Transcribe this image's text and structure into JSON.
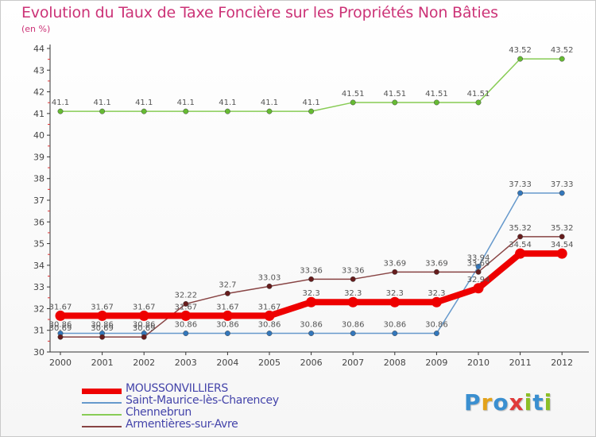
{
  "title": "Evolution du Taux de Taxe Foncière sur les Propriétés Non Bâties",
  "subtitle": "(en %)",
  "logo": {
    "text": "Proxiti",
    "colors": [
      "#3a8fd0",
      "#e3a21a",
      "#3a8fd0",
      "#e03a3a",
      "#8cbf26",
      "#3a8fd0",
      "#8cbf26"
    ]
  },
  "chart_data": {
    "type": "line",
    "title": "Evolution du Taux de Taxe Foncière sur les Propriétés Non Bâties",
    "ylabel": "(en %)",
    "xlabel": "",
    "ylim": [
      30,
      44
    ],
    "yticks": [
      30,
      31,
      32,
      33,
      34,
      35,
      36,
      37,
      38,
      39,
      40,
      41,
      42,
      43,
      44
    ],
    "categories": [
      "2000",
      "2001",
      "2002",
      "2003",
      "2004",
      "2005",
      "2006",
      "2007",
      "2008",
      "2009",
      "2010",
      "2011",
      "2012"
    ],
    "series": [
      {
        "name": "Chennebrun",
        "color": "#88cc55",
        "marker": "#66bb33",
        "width": 1.5,
        "values": [
          41.1,
          41.1,
          41.1,
          41.1,
          41.1,
          41.1,
          41.1,
          41.51,
          41.51,
          41.51,
          41.51,
          43.52,
          43.52
        ],
        "labels": [
          "41.1",
          "41.1",
          "41.1",
          "41.1",
          "41.1",
          "41.1",
          "41.1",
          "41.51",
          "41.51",
          "41.51",
          "41.51",
          "43.52",
          "43.52"
        ]
      },
      {
        "name": "Saint-Maurice-lès-Charencey",
        "color": "#6699cc",
        "marker": "#3377bb",
        "width": 1.5,
        "values": [
          30.86,
          30.86,
          30.86,
          30.86,
          30.86,
          30.86,
          30.86,
          30.86,
          30.86,
          30.86,
          33.94,
          37.33,
          37.33
        ],
        "labels": [
          "30.86",
          "30.86",
          "30.86",
          "30.86",
          "30.86",
          "30.86",
          "30.86",
          "30.86",
          "30.86",
          "30.86",
          "33.94",
          "37.33",
          "37.33"
        ]
      },
      {
        "name": "Armentières-sur-Avre",
        "color": "#884444",
        "marker": "#661c1c",
        "width": 1.5,
        "values": [
          30.69,
          30.69,
          30.69,
          32.22,
          32.7,
          33.03,
          33.36,
          33.36,
          33.69,
          33.69,
          33.69,
          35.32,
          35.32
        ],
        "labels": [
          "30.69",
          "30.69",
          "30.69",
          "32.22",
          "32.7",
          "33.03",
          "33.36",
          "33.36",
          "33.69",
          "33.69",
          "33.69",
          "35.32",
          "35.32"
        ]
      },
      {
        "name": "MOUSSONVILLIERS",
        "color": "#ee0000",
        "marker": "#ee0000",
        "width": 8,
        "values": [
          31.67,
          31.67,
          31.67,
          31.67,
          31.67,
          31.67,
          32.3,
          32.3,
          32.3,
          32.3,
          32.94,
          34.54,
          34.54
        ],
        "labels": [
          "31.67",
          "31.67",
          "31.67",
          "31.67",
          "31.67",
          "31.67",
          "32.3",
          "32.3",
          "32.3",
          "32.3",
          "32.94",
          "34.54",
          "34.54"
        ]
      }
    ],
    "legend": [
      "MOUSSONVILLIERS",
      "Saint-Maurice-lès-Charencey",
      "Chennebrun",
      "Armentières-sur-Avre"
    ],
    "legend_position": "bottom-left",
    "grid": false
  }
}
